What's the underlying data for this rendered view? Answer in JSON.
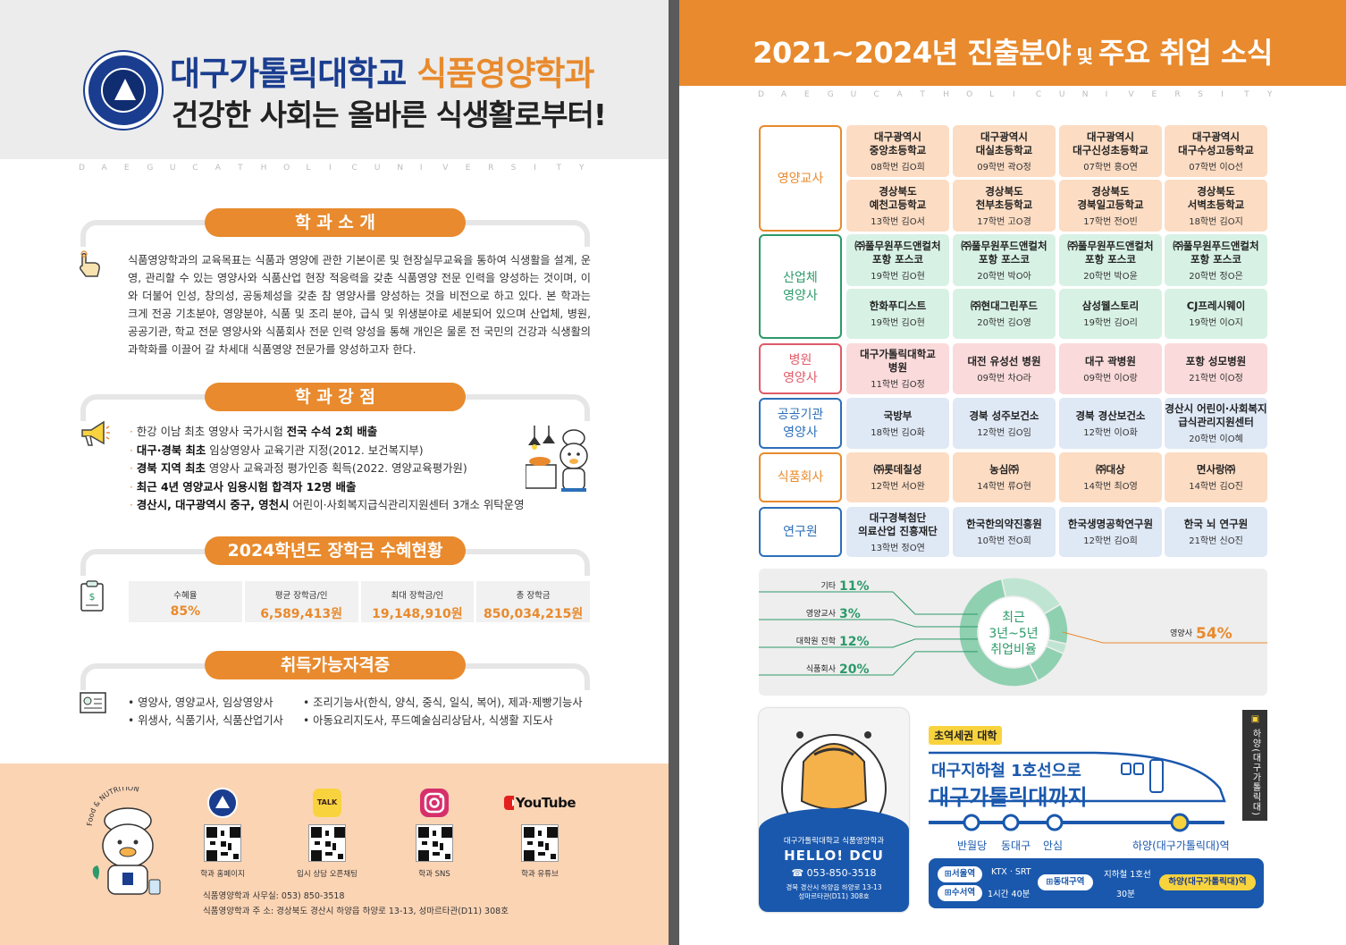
{
  "left": {
    "logo": {
      "text": "DAEGU CATHOLIC UNIVERSITY"
    },
    "title_main": "대구가톨릭대학교",
    "title_dept": "식품영양학과",
    "subtitle": "건강한 사회는 올바른 식생활로부터!",
    "watermark": [
      "D",
      "A",
      "E",
      "G",
      "U",
      "C",
      "A",
      "T",
      "H",
      "O",
      "L",
      "I",
      "C",
      "U",
      "N",
      "I",
      "V",
      "E",
      "R",
      "S",
      "I",
      "T",
      "Y"
    ],
    "intro": {
      "heading": "학 과 소 개",
      "text": "식품영양학과의 교육목표는 식품과 영양에 관한 기본이론 및 현장실무교육을 통하여 식생활을 설계, 운영, 관리할 수 있는 영양사와 식품산업 현장 적응력을 갖춘 식품영양 전문 인력을 양성하는 것이며, 이와 더불어 인성, 창의성, 공동체성을 갖춘 참 영양사를 양성하는 것을 비전으로 하고 있다. 본 학과는 크게 전공 기초분야, 영양분야, 식품 및 조리 분야, 급식 및 위생분야로 세분되어 있으며 산업체, 병원, 공공기관, 학교 전문 영양사와 식품회사 전문 인력 양성을 통해 개인은 물론 전 국민의 건강과 식생활의 과학화를 이끌어 갈 차세대 식품영양 전문가를 양성하고자 한다."
    },
    "strengths": {
      "heading": "학 과 강 점",
      "items": [
        {
          "pre": "한강 이남 최초 영양사 국가시험 ",
          "bold": "전국 수석 2회 배출",
          "post": ""
        },
        {
          "pre": "",
          "bold": "대구·경북 최초",
          "post": " 임상영양사 교육기관 지정(2012. 보건복지부)"
        },
        {
          "pre": "",
          "bold": "경북 지역 최초",
          "post": " 영양사 교육과정 평가인증 획득(2022. 영양교육평가원)"
        },
        {
          "pre": "",
          "bold": "최근 4년 영양교사 임용시험 합격자 12명 배출",
          "post": ""
        },
        {
          "pre": "",
          "bold": "경산시, 대구광역시 중구, 영천시",
          "post": " 어린이·사회복지급식관리지원센터 3개소 위탁운영"
        }
      ]
    },
    "scholarship": {
      "heading": "2024학년도 장학금 수혜현황",
      "stats": [
        {
          "label": "수혜율",
          "value": "85%"
        },
        {
          "label": "평균 장학금/인",
          "value": "6,589,413원"
        },
        {
          "label": "최대 장학금/인",
          "value": "19,148,910원"
        },
        {
          "label": "총 장학금",
          "value": "850,034,215원"
        }
      ]
    },
    "certs": {
      "heading": "취득가능자격증",
      "col1": [
        "• 영양사, 영양교사, 임상영양사",
        "• 위생사, 식품기사, 식품산업기사"
      ],
      "col2": [
        "• 조리기능사(한식, 양식, 중식, 일식, 복어), 제과·제빵기능사",
        "• 아동요리지도사, 푸드예술심리상담사, 식생활 지도사"
      ]
    },
    "footer": {
      "mascot_text": "Food & NUTRITION",
      "qr": [
        {
          "icon": "university-logo-icon",
          "icon_text": "",
          "label": "학과 홈페이지"
        },
        {
          "icon": "kakaotalk-icon",
          "icon_text": "TALK",
          "label": "입시 상담 오픈채팅"
        },
        {
          "icon": "instagram-icon",
          "icon_text": "",
          "label": "학과 SNS"
        },
        {
          "icon": "youtube-icon",
          "icon_text": "YouTube",
          "label": "학과 유튜브"
        }
      ],
      "office": "식품영양학과 사무실: 053) 850-3518",
      "address": "식품영양학과 주  소: 경상북도 경산시 하양읍 하양로 13-13, 성마르타관(D11) 308호"
    }
  },
  "right": {
    "title": "2021~2024년 진출분야",
    "title_mid": " 및 ",
    "title_end": "주요 취업 소식",
    "watermark": [
      "D",
      "A",
      "E",
      "G",
      "U",
      "C",
      "A",
      "T",
      "H",
      "O",
      "L",
      "I",
      "C",
      "U",
      "N",
      "I",
      "V",
      "E",
      "R",
      "S",
      "I",
      "T",
      "Y"
    ],
    "categories": [
      {
        "name": "영양교사",
        "color": "#e88a2d",
        "rows": [
          [
            {
              "n": "대구광역시\n중앙초등학교",
              "s": "08학번 김O희"
            },
            {
              "n": "대구광역시\n대실초등학교",
              "s": "09학번 곽O정"
            },
            {
              "n": "대구광역시\n대구신성초등학교",
              "s": "07학번 홍O연"
            },
            {
              "n": "대구광역시\n대구수성고등학교",
              "s": "07학번 이O선"
            }
          ],
          [
            {
              "n": "경상북도\n예천고등학교",
              "s": "13학번 김O서"
            },
            {
              "n": "경상북도\n천부초등학교",
              "s": "17학번 고O경"
            },
            {
              "n": "경상북도\n경북일고등학교",
              "s": "17학번 전O빈"
            },
            {
              "n": "경상북도\n서벽초등학교",
              "s": "18학번 김O지"
            }
          ]
        ]
      },
      {
        "name": "산업체\n영양사",
        "color": "#2c9a6a",
        "rows": [
          [
            {
              "n": "㈜풀무원푸드앤컬처\n포항 포스코",
              "s": "19학번 김O현"
            },
            {
              "n": "㈜풀무원푸드앤컬처\n포항 포스코",
              "s": "20학번 박O아"
            },
            {
              "n": "㈜풀무원푸드앤컬처\n포항 포스코",
              "s": "20학번 박O윤"
            },
            {
              "n": "㈜풀무원푸드앤컬처\n포항 포스코",
              "s": "20학번 정O은"
            }
          ],
          [
            {
              "n": "한화푸디스트",
              "s": "19학번 김O현"
            },
            {
              "n": "㈜현대그린푸드",
              "s": "20학번 김O영"
            },
            {
              "n": "삼성웰스토리",
              "s": "19학번 김O리"
            },
            {
              "n": "CJ프레시웨이",
              "s": "19학번 이O지"
            }
          ]
        ]
      },
      {
        "name": "병원\n영양사",
        "color": "#e05b6a",
        "rows": [
          [
            {
              "n": "대구가톨릭대학교\n병원",
              "s": "11학번 김O정"
            },
            {
              "n": "대전 유성선 병원",
              "s": "09학번 차O라"
            },
            {
              "n": "대구 곽병원",
              "s": "09학번 이O랑"
            },
            {
              "n": "포항 성모병원",
              "s": "21학번 이O정"
            }
          ]
        ]
      },
      {
        "name": "공공기관\n영양사",
        "color": "#2c6fb8",
        "rows": [
          [
            {
              "n": "국방부",
              "s": "18학번 김O화"
            },
            {
              "n": "경북 성주보건소",
              "s": "12학번 김O임"
            },
            {
              "n": "경북 경산보건소",
              "s": "12학번 이O화"
            },
            {
              "n": "경산시 어린이·사회복지\n급식관리지원센터",
              "s": "20학번 이O혜"
            }
          ]
        ]
      },
      {
        "name": "식품회사",
        "color": "#e88a2d",
        "rows": [
          [
            {
              "n": "㈜롯데칠성",
              "s": "12학번 서O완"
            },
            {
              "n": "농심㈜",
              "s": "14학번 류O현"
            },
            {
              "n": "㈜대상",
              "s": "14학번 최O영"
            },
            {
              "n": "면사랑㈜",
              "s": "14학번 김O진"
            }
          ]
        ]
      },
      {
        "name": "연구원",
        "color": "#2c6fb8",
        "rows": [
          [
            {
              "n": "대구경북첨단\n의료산업 진흥재단",
              "s": "13학번 정O연"
            },
            {
              "n": "한국한의약진흥원",
              "s": "10학번 전O희"
            },
            {
              "n": "한국생명공학연구원",
              "s": "12학번 김O희"
            },
            {
              "n": "한국 뇌 연구원",
              "s": "21학번 신O진"
            }
          ]
        ]
      }
    ],
    "pie": {
      "center": [
        "최근",
        "3년~5년",
        "취업비율"
      ],
      "slices": [
        {
          "label": "영양사",
          "value": 54
        },
        {
          "label": "식품회사",
          "value": 20
        },
        {
          "label": "대학원 진학",
          "value": 12
        },
        {
          "label": "영양교사",
          "value": 3
        },
        {
          "label": "기타",
          "value": 11
        }
      ],
      "colors": {
        "main": "#8fd0b0",
        "light": "#bfe5d2",
        "accent": "#e88a2d"
      }
    },
    "card": {
      "line1": "대구가톨릭대학교 식품영양학과",
      "hello": "HELLO! DCU",
      "phone": "☎ 053-850-3518",
      "addr1": "경북 경산시 하양읍 하양로 13-13",
      "addr2": "성마르타관(D11) 308호"
    },
    "subway": {
      "badge": "초역세권 대학",
      "line1": "대구지하철 1호선으로",
      "line2": "대구가톨릭대까지",
      "strip": "하양(대구가톨릭대)역",
      "stations": [
        "반월당",
        "동대구",
        "안심",
        "하양(대구가톨릭대)역"
      ],
      "route": {
        "from1": "서울역",
        "from2": "수서역",
        "via": "KTX · SRT",
        "time1": "1시간 40분",
        "hub": "동대구역",
        "line": "지하철 1호선",
        "time2": "30분",
        "dest": "하양(대구가톨릭대)역"
      }
    }
  }
}
